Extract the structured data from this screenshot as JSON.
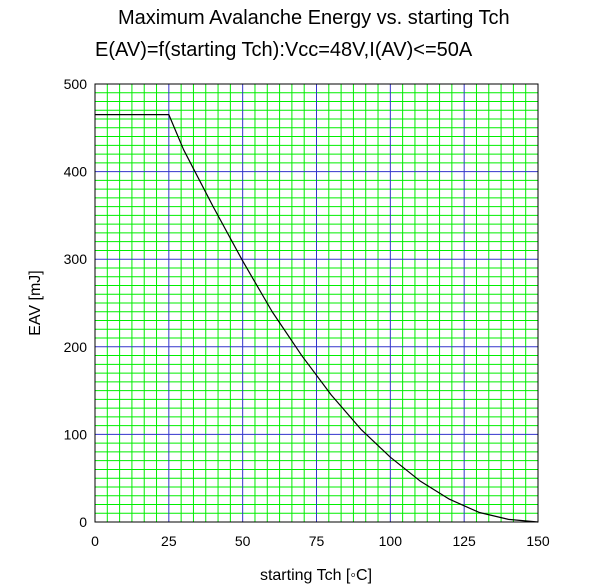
{
  "chart_data": {
    "type": "line",
    "title": "Maximum Avalanche Energy vs. starting Tch",
    "subtitle": "E(AV)=f(starting Tch):Vcc=48V,I(AV)<=50A",
    "xlabel": "starting Tch [◦C]",
    "ylabel": "EAV [mJ]",
    "xlim": [
      0,
      150
    ],
    "ylim": [
      0,
      500
    ],
    "xticks": [
      0,
      25,
      50,
      75,
      100,
      125,
      150
    ],
    "yticks": [
      0,
      100,
      200,
      300,
      400,
      500
    ],
    "grid": true,
    "colors": {
      "minor_grid": "#00ee00",
      "major_grid": "#3333cc",
      "line": "#000000"
    },
    "series": [
      {
        "x": [
          0,
          25,
          30,
          40,
          50,
          60,
          70,
          80,
          90,
          100,
          110,
          120,
          130,
          140,
          150
        ],
        "values": [
          465,
          465,
          425,
          360,
          298,
          240,
          190,
          145,
          106,
          74,
          47,
          26,
          11,
          3,
          0
        ]
      }
    ]
  }
}
